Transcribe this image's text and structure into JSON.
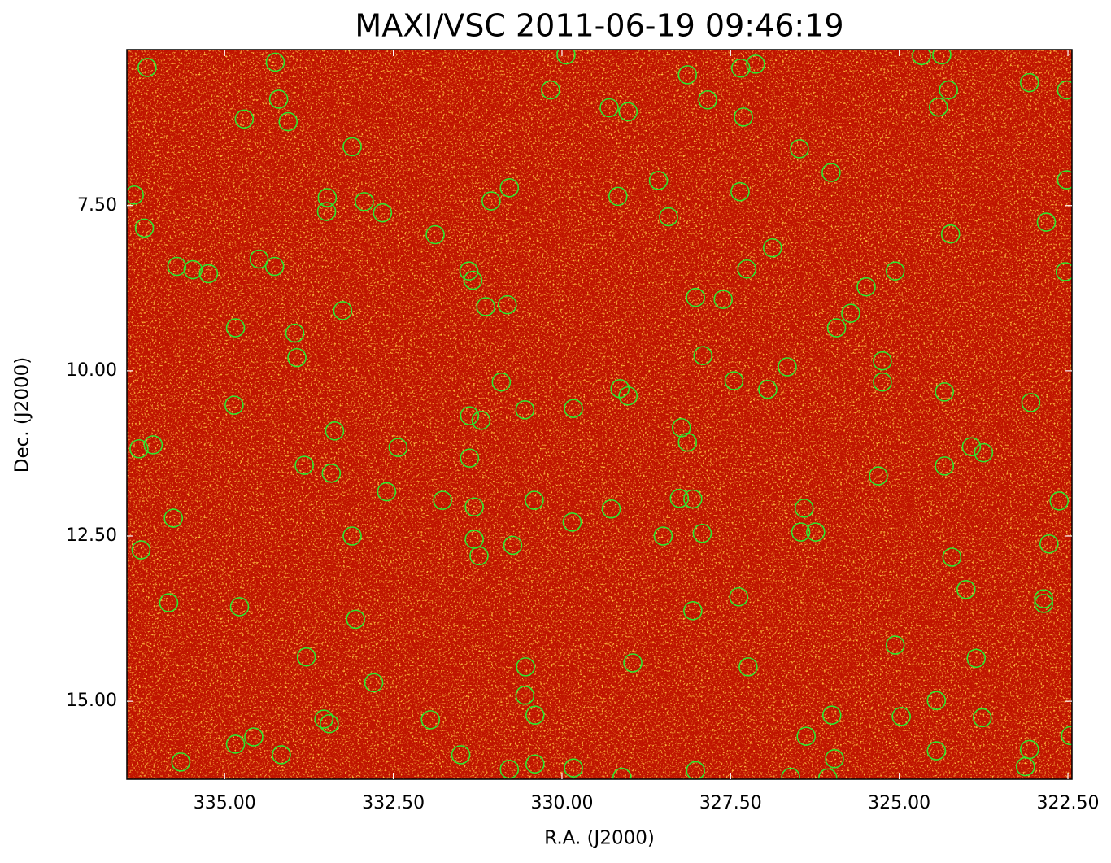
{
  "chart_data": {
    "type": "scatter",
    "title": "MAXI/VSC 2011-06-19 09:46:19",
    "x_label": "R.A. (J2000)",
    "y_label": "Dec. (J2000)",
    "xlim": [
      336.45,
      322.44
    ],
    "ylim": [
      5.14,
      16.18
    ],
    "y_inverted": true,
    "xticks": [
      {
        "value": 335,
        "label": "335.00"
      },
      {
        "value": 332.5,
        "label": "332.50"
      },
      {
        "value": 330,
        "label": "330.00"
      },
      {
        "value": 327.5,
        "label": "327.50"
      },
      {
        "value": 325,
        "label": "325.00"
      },
      {
        "value": 322.5,
        "label": "322.50"
      }
    ],
    "yticks": [
      {
        "value": 7.5,
        "label": "7.50"
      },
      {
        "value": 10,
        "label": "10.00"
      },
      {
        "value": 12.5,
        "label": "12.50"
      },
      {
        "value": 15,
        "label": "15.00"
      }
    ],
    "color": "#2ee82e",
    "x": [
      336.15,
      334.25,
      334.2,
      334.71,
      334.06,
      333.11,
      336.34,
      336.19,
      333.48,
      333.49,
      332.93,
      332.66,
      331.88,
      331.05,
      330.78,
      335.71,
      335.47,
      335.24,
      334.49,
      334.26,
      333.25,
      334.84,
      333.96,
      333.93,
      331.38,
      331.32,
      331.13,
      330.81,
      334.86,
      336.27,
      336.06,
      333.37,
      332.43,
      333.82,
      333.42,
      335.76,
      336.24,
      332.6,
      331.77,
      333.11,
      335.83,
      334.78,
      333.06,
      333.79,
      332.79,
      333.53,
      333.45,
      334.84,
      334.57,
      334.16,
      335.65,
      331.95,
      331.5,
      330.78,
      330.4,
      329.83,
      330.54,
      330.55,
      330.4,
      328.95,
      329.11,
      328.02,
      327.24,
      328.06,
      327.38,
      326.61,
      326.38,
      325.96,
      326.06,
      326.0,
      324.97,
      324.45,
      324.45,
      323.77,
      323.07,
      323.13,
      322.46,
      325.06,
      323.86,
      324.01,
      324.22,
      322.86,
      322.86,
      322.78,
      322.63,
      323.75,
      323.93,
      324.33,
      325.31,
      325.25,
      325.25,
      324.33,
      323.05,
      326.41,
      326.46,
      326.24,
      327.92,
      328.5,
      328.26,
      328.06,
      328.23,
      328.14,
      327.91,
      327.45,
      326.95,
      326.66,
      329.14,
      329.02,
      329.83,
      330.55,
      330.9,
      331.37,
      331.2,
      331.37,
      331.3,
      331.3,
      331.23,
      330.73,
      330.41,
      329.85,
      329.27,
      328.02,
      327.61,
      327.26,
      326.88,
      325.93,
      325.72,
      325.49,
      325.06,
      324.24,
      322.82,
      322.54,
      322.52,
      326.01,
      326.48,
      327.36,
      328.42,
      328.57,
      329.17,
      330.17,
      329.3,
      329.02,
      328.14,
      327.84,
      327.35,
      327.13,
      327.31,
      329.94,
      324.67,
      324.37,
      324.27,
      324.42,
      323.07,
      322.52
    ],
    "y": [
      5.41,
      5.33,
      5.89,
      6.19,
      6.23,
      6.61,
      7.34,
      7.84,
      7.38,
      7.59,
      7.44,
      7.61,
      7.94,
      7.43,
      7.23,
      8.42,
      8.47,
      8.53,
      8.31,
      8.42,
      9.09,
      9.35,
      9.43,
      9.8,
      8.49,
      8.63,
      9.03,
      9.0,
      10.52,
      11.18,
      11.12,
      10.91,
      11.16,
      11.43,
      11.55,
      12.23,
      12.71,
      11.83,
      11.96,
      12.5,
      13.51,
      13.57,
      13.76,
      14.33,
      14.72,
      15.27,
      15.34,
      15.65,
      15.54,
      15.81,
      15.92,
      15.28,
      15.81,
      16.03,
      15.95,
      16.01,
      14.48,
      14.91,
      15.21,
      14.42,
      16.15,
      16.05,
      14.48,
      13.63,
      13.42,
      16.15,
      15.53,
      15.87,
      16.16,
      15.21,
      15.23,
      14.99,
      15.75,
      15.25,
      15.73,
      15.99,
      15.52,
      14.15,
      14.35,
      13.31,
      12.82,
      13.45,
      13.52,
      12.62,
      11.97,
      11.24,
      11.15,
      11.44,
      11.59,
      9.85,
      10.17,
      10.32,
      10.48,
      12.08,
      12.44,
      12.44,
      12.46,
      12.5,
      11.93,
      11.94,
      10.86,
      11.08,
      9.77,
      10.15,
      10.28,
      9.94,
      10.27,
      10.38,
      10.57,
      10.59,
      10.17,
      10.68,
      10.75,
      11.32,
      12.06,
      12.55,
      12.8,
      12.64,
      11.96,
      12.29,
      12.09,
      8.89,
      8.92,
      8.46,
      8.14,
      9.35,
      9.13,
      8.73,
      8.49,
      7.93,
      7.75,
      8.5,
      7.11,
      7.0,
      6.64,
      7.29,
      7.67,
      7.12,
      7.36,
      5.75,
      6.02,
      6.08,
      5.52,
      5.9,
      5.42,
      5.36,
      6.16,
      5.22,
      5.23,
      5.22,
      5.75,
      6.01,
      5.64,
      5.75
    ]
  }
}
